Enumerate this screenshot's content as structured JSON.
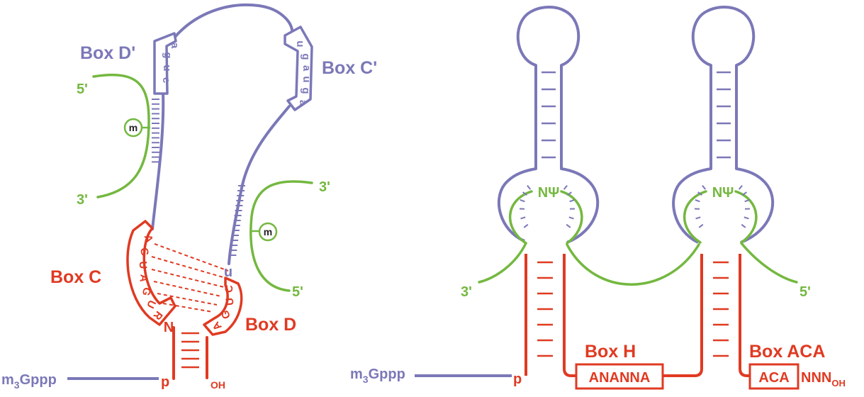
{
  "colors": {
    "blue": "#7b78b8",
    "red": "#e03a22",
    "green": "#74b840",
    "white": "#ffffff"
  },
  "cd_box": {
    "box_d_prime": {
      "label": "Box D'",
      "seq": [
        "g",
        "a",
        "u",
        "c"
      ]
    },
    "box_c_prime": {
      "label": "Box C'",
      "seq": [
        "u",
        "g",
        "a",
        "u",
        "g",
        "a"
      ]
    },
    "box_c": {
      "label": "Box C",
      "seq": [
        "A",
        "G",
        "U",
        "A",
        "G",
        "U",
        "R"
      ]
    },
    "box_d": {
      "label": "Box D",
      "seq": [
        "C",
        "U",
        "G",
        "A"
      ]
    },
    "guide_top": {
      "five": "5'",
      "three": "3'",
      "mod": "m"
    },
    "guide_bottom": {
      "five": "5'",
      "three": "3'",
      "mod": "m"
    },
    "u_nt": "u",
    "n_nt": "N",
    "cap": {
      "prefix": "m",
      "sub": "3",
      "suffix": "Gppp"
    },
    "p": "p",
    "oh": "OH"
  },
  "haca_box": {
    "pocket_left": "NΨ",
    "pocket_right": "NΨ",
    "three": "3'",
    "five": "5'",
    "box_h": {
      "label": "Box H",
      "seq": "ANANNA"
    },
    "box_aca": {
      "label": "Box ACA",
      "seq": "ACA",
      "tail": "NNN",
      "oh": "OH"
    },
    "cap": {
      "prefix": "m",
      "sub": "3",
      "suffix": "Gppp"
    },
    "p": "p"
  }
}
